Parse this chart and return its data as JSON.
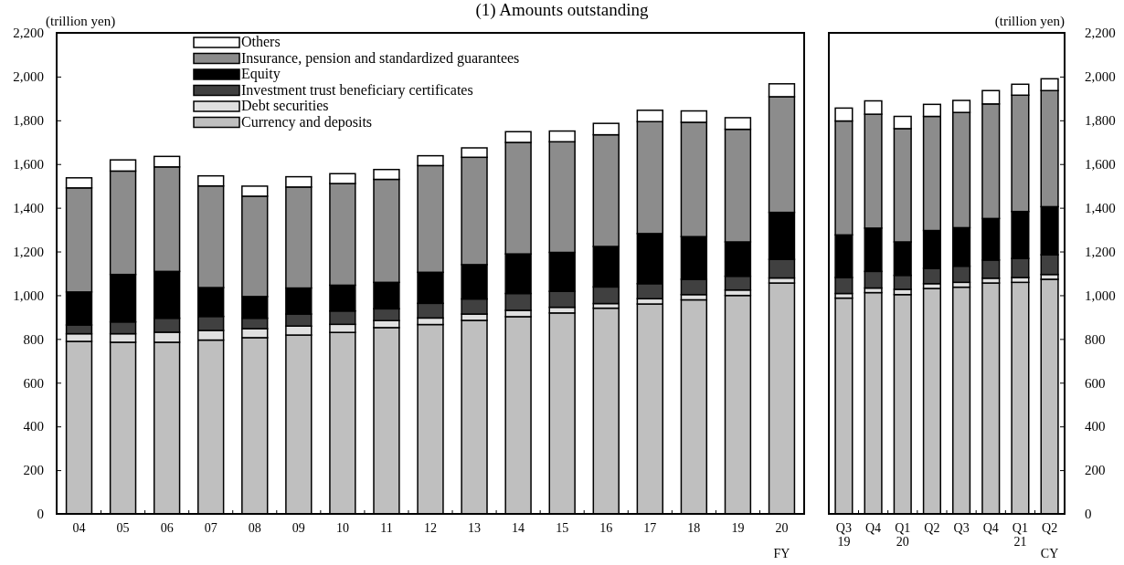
{
  "chart_data": [
    {
      "type": "bar",
      "stacked": true,
      "title": "(1) Amounts outstanding",
      "ylabel": "(trillion yen)",
      "xlabel": "FY",
      "categories": [
        "04",
        "05",
        "06",
        "07",
        "08",
        "09",
        "10",
        "11",
        "12",
        "13",
        "14",
        "15",
        "16",
        "17",
        "18",
        "19",
        "20"
      ],
      "ylim": [
        0,
        2200
      ],
      "yticks": [
        0,
        200,
        400,
        600,
        800,
        {
          "value": 1000,
          "label": "1,000"
        },
        {
          "value": 1200,
          "label": "1,200"
        },
        {
          "value": 1400,
          "label": "1,400"
        },
        {
          "value": 1600,
          "label": "1,600"
        },
        {
          "value": 1800,
          "label": "1,800"
        },
        {
          "value": 2000,
          "label": "2,000"
        },
        {
          "value": 2200,
          "label": "2,200"
        }
      ],
      "legend": "top",
      "grid": false,
      "series": [
        {
          "name": "Currency and deposits",
          "color": "#bfbfbf",
          "values": [
            789,
            785,
            785,
            795,
            806,
            818,
            830,
            852,
            866,
            885,
            902,
            919,
            941,
            960,
            979,
            999,
            1056
          ]
        },
        {
          "name": "Debt securities",
          "color": "#e0e0e0",
          "values": [
            35,
            39,
            46,
            44,
            41,
            41,
            37,
            32,
            30,
            29,
            29,
            26,
            21,
            24,
            24,
            25,
            23
          ]
        },
        {
          "name": "Investment trust beneficiary certificates",
          "color": "#404040",
          "values": [
            40,
            54,
            64,
            64,
            48,
            55,
            61,
            54,
            67,
            69,
            77,
            73,
            76,
            69,
            70,
            63,
            85
          ]
        },
        {
          "name": "Equity",
          "color": "#000000",
          "values": [
            151,
            217,
            214,
            132,
            99,
            119,
            118,
            121,
            142,
            157,
            181,
            178,
            185,
            229,
            195,
            157,
            215
          ]
        },
        {
          "name": "Insurance, pension and standardized guarantees",
          "color": "#8c8c8c",
          "values": [
            476,
            473,
            478,
            465,
            459,
            462,
            465,
            471,
            488,
            491,
            510,
            506,
            511,
            512,
            523,
            515,
            529
          ]
        },
        {
          "name": "Others",
          "color": "#ffffff",
          "values": [
            46,
            51,
            48,
            46,
            46,
            47,
            45,
            45,
            45,
            43,
            49,
            49,
            52,
            52,
            52,
            53,
            59
          ]
        }
      ]
    },
    {
      "type": "bar",
      "stacked": true,
      "ylabel": "(trillion yen)",
      "xlabel": "CY",
      "categories": [
        "Q3\n19",
        "Q4",
        "Q1\n20",
        "Q2",
        "Q3",
        "Q4",
        "Q1\n21",
        "Q2"
      ],
      "ylim": [
        0,
        2200
      ],
      "yticks": [
        0,
        200,
        400,
        600,
        800,
        {
          "value": 1000,
          "label": "1,000"
        },
        {
          "value": 1200,
          "label": "1,200"
        },
        {
          "value": 1400,
          "label": "1,400"
        },
        {
          "value": 1600,
          "label": "1,600"
        },
        {
          "value": 1800,
          "label": "1,800"
        },
        {
          "value": 2000,
          "label": "2,000"
        },
        {
          "value": 2200,
          "label": "2,200"
        }
      ],
      "legend": false,
      "grid": false,
      "series": [
        {
          "color": "#bfbfbf",
          "values": [
            987,
            1012,
            1003,
            1031,
            1037,
            1056,
            1059,
            1073
          ]
        },
        {
          "color": "#e0e0e0",
          "values": [
            21,
            21,
            24,
            22,
            22,
            22,
            22,
            22
          ]
        },
        {
          "color": "#404040",
          "values": [
            73,
            76,
            64,
            70,
            74,
            83,
            87,
            90
          ]
        },
        {
          "color": "#000000",
          "values": [
            195,
            198,
            153,
            173,
            176,
            190,
            215,
            220
          ]
        },
        {
          "color": "#8c8c8c",
          "values": [
            521,
            521,
            518,
            522,
            527,
            524,
            532,
            531
          ]
        },
        {
          "color": "#ffffff",
          "values": [
            59,
            61,
            56,
            55,
            55,
            61,
            50,
            54
          ]
        }
      ]
    }
  ]
}
